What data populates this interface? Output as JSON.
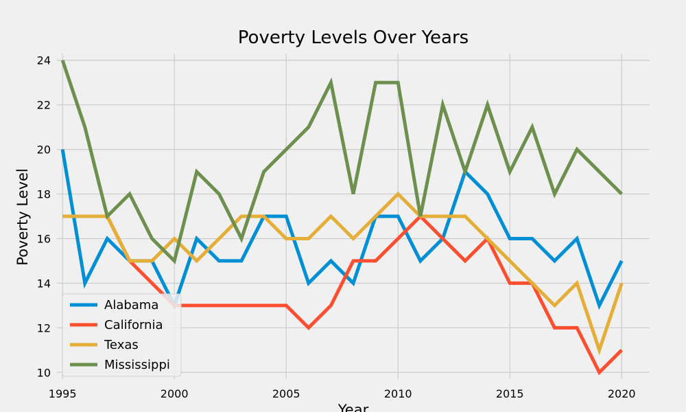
{
  "chart_data": {
    "type": "line",
    "title": "Poverty Levels Over Years",
    "xlabel": "Year",
    "ylabel": "Poverty Level",
    "x": [
      1995,
      1996,
      1997,
      1998,
      1999,
      2000,
      2001,
      2002,
      2003,
      2004,
      2005,
      2006,
      2007,
      2008,
      2009,
      2010,
      2011,
      2012,
      2013,
      2014,
      2015,
      2016,
      2017,
      2018,
      2019,
      2020
    ],
    "xlim": [
      1994.75,
      2021.25
    ],
    "ylim": [
      9.7,
      24.3
    ],
    "xticks": [
      1995,
      2000,
      2005,
      2010,
      2015,
      2020
    ],
    "yticks": [
      10,
      12,
      14,
      16,
      18,
      20,
      22,
      24
    ],
    "grid": true,
    "legend_position": "lower-left",
    "series": [
      {
        "name": "Alabama",
        "color": "#008fd5",
        "values": [
          20,
          14,
          16,
          15,
          15,
          13,
          16,
          15,
          15,
          17,
          17,
          14,
          15,
          14,
          17,
          17,
          15,
          16,
          19,
          18,
          16,
          16,
          15,
          16,
          13,
          15
        ]
      },
      {
        "name": "California",
        "color": "#fc4f30",
        "values": [
          17,
          17,
          17,
          15,
          14,
          13,
          13,
          13,
          13,
          13,
          13,
          12,
          13,
          15,
          15,
          16,
          17,
          16,
          15,
          16,
          14,
          14,
          12,
          12,
          10,
          11
        ]
      },
      {
        "name": "Texas",
        "color": "#e5ae38",
        "values": [
          17,
          17,
          17,
          15,
          15,
          16,
          15,
          16,
          17,
          17,
          16,
          16,
          17,
          16,
          17,
          18,
          17,
          17,
          17,
          16,
          15,
          14,
          13,
          14,
          11,
          14
        ]
      },
      {
        "name": "Mississippi",
        "color": "#6d904f",
        "values": [
          24,
          21,
          17,
          18,
          16,
          15,
          19,
          18,
          16,
          19,
          20,
          21,
          23,
          18,
          23,
          23,
          17,
          22,
          19,
          22,
          19,
          21,
          18,
          20,
          19,
          18
        ]
      }
    ]
  }
}
